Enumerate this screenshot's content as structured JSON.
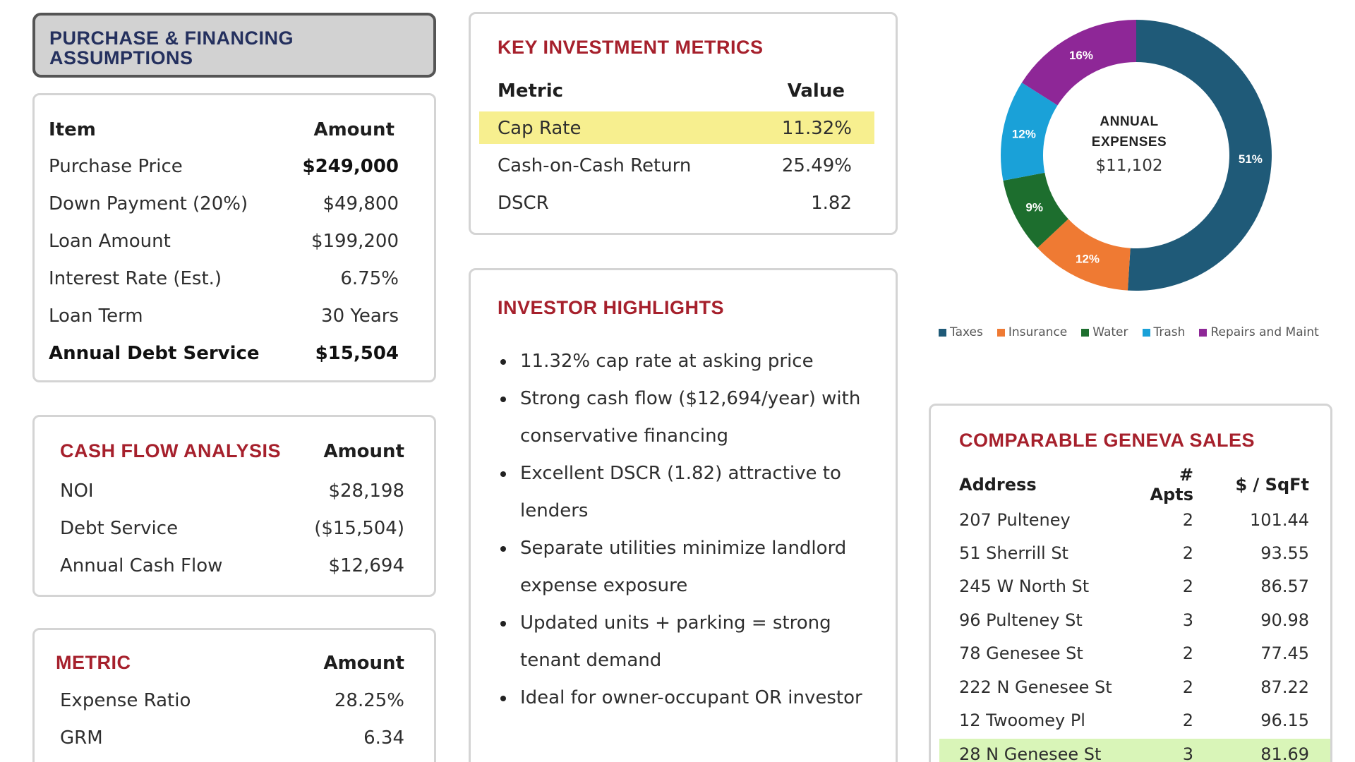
{
  "purchase_financing": {
    "title_line1": "PURCHASE & FINANCING",
    "title_line2": "ASSUMPTIONS",
    "col_item": "Item",
    "col_amount": "Amount",
    "rows": [
      {
        "label": "Purchase Price",
        "value": "$249,000"
      },
      {
        "label": "Down Payment (20%)",
        "value": "$49,800"
      },
      {
        "label": "Loan Amount",
        "value": "$199,200"
      },
      {
        "label": "Interest Rate (Est.)",
        "value": "6.75%"
      },
      {
        "label": "Loan Term",
        "value": "30 Years"
      },
      {
        "label": "Annual Debt Service",
        "value": "$15,504"
      }
    ]
  },
  "cash_flow": {
    "title": "CASH FLOW ANALYSIS",
    "col_amount": "Amount",
    "rows": [
      {
        "label": "NOI",
        "value": "$28,198"
      },
      {
        "label": "Debt Service",
        "value": "($15,504)"
      },
      {
        "label": "Annual Cash Flow",
        "value": "$12,694"
      }
    ]
  },
  "metric_table": {
    "title": "METRIC",
    "col_amount": "Amount",
    "rows": [
      {
        "label": "Expense Ratio",
        "value": "28.25%"
      },
      {
        "label": "GRM",
        "value": "6.34"
      }
    ]
  },
  "key_metrics": {
    "title": "KEY INVESTMENT METRICS",
    "col_metric": "Metric",
    "col_value": "Value",
    "rows": [
      {
        "label": "Cap Rate",
        "value": "11.32%"
      },
      {
        "label": "Cash-on-Cash Return",
        "value": "25.49%"
      },
      {
        "label": "DSCR",
        "value": "1.82"
      }
    ]
  },
  "investor_highlights": {
    "title": "INVESTOR HIGHLIGHTS",
    "bullets": [
      "11.32% cap rate at asking price",
      "Strong cash flow ($12,694/year) with conservative financing",
      "Excellent DSCR (1.82) attractive to lenders",
      "Separate utilities minimize landlord expense exposure",
      "Updated units + parking = strong tenant demand",
      "Ideal for owner-occupant OR investor"
    ]
  },
  "expenses_chart": {
    "center_line1": "ANNUAL",
    "center_line2": "EXPENSES",
    "center_value": "$11,102"
  },
  "chart_data": {
    "type": "pie",
    "style": "donut",
    "categories": [
      "Taxes",
      "Insurance",
      "Water",
      "Trash",
      "Repairs and Maint"
    ],
    "values": [
      51,
      12,
      9,
      12,
      16
    ],
    "labels": [
      "51%",
      "12%",
      "9%",
      "12%",
      "16%"
    ],
    "colors": [
      "#1f5a78",
      "#ef7a33",
      "#1d6e2e",
      "#1aa1d8",
      "#8e2797"
    ],
    "legend_position": "bottom"
  },
  "comparables": {
    "title": "COMPARABLE GENEVA SALES",
    "col_address": "Address",
    "col_apts": "# Apts",
    "col_sqft": "$ / SqFt",
    "rows": [
      {
        "address": "207 Pulteney",
        "apts": "2",
        "sqft": "101.44"
      },
      {
        "address": "51 Sherrill St",
        "apts": "2",
        "sqft": "93.55"
      },
      {
        "address": "245 W North St",
        "apts": "2",
        "sqft": "86.57"
      },
      {
        "address": "96 Pulteney St",
        "apts": "3",
        "sqft": "90.98"
      },
      {
        "address": "78 Genesee St",
        "apts": "2",
        "sqft": "77.45"
      },
      {
        "address": "222 N Genesee St",
        "apts": "2",
        "sqft": "87.22"
      },
      {
        "address": "12 Twoomey Pl",
        "apts": "2",
        "sqft": "96.15"
      },
      {
        "address": "28 N Genesee St",
        "apts": "3",
        "sqft": "81.69"
      }
    ]
  }
}
